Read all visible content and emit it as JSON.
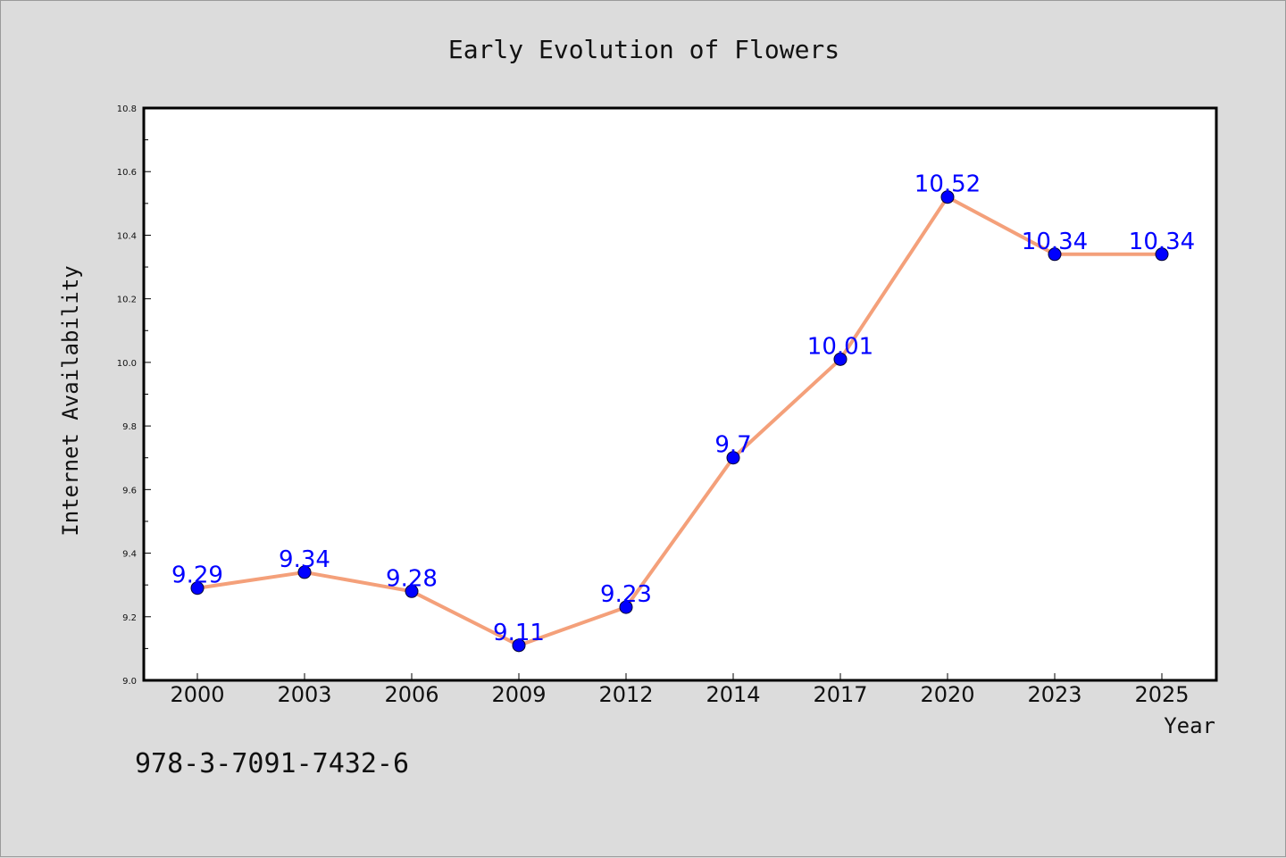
{
  "chart_data": {
    "type": "line",
    "title": "Early Evolution of Flowers",
    "xlabel": "Year",
    "ylabel": "Internet Availability",
    "categories": [
      "2000",
      "2003",
      "2006",
      "2009",
      "2012",
      "2014",
      "2017",
      "2020",
      "2023",
      "2025"
    ],
    "series": [
      {
        "values": [
          9.29,
          9.34,
          9.28,
          9.11,
          9.23,
          9.7,
          10.01,
          10.52,
          10.34,
          10.34
        ],
        "data_labels": [
          "9.29",
          "9.34",
          "9.28",
          "9.11",
          "9.23",
          "9.7",
          "10.01",
          "10.52",
          "10.34",
          "10.34"
        ],
        "line_color": "#f4a07a",
        "marker_color": "#0000ff"
      }
    ],
    "ylim": [
      9.0,
      10.8
    ],
    "yticks": [
      "9.0",
      "9.2",
      "9.4",
      "9.6",
      "9.8",
      "10.0",
      "10.2",
      "10.4",
      "10.6",
      "10.8"
    ],
    "grid": false,
    "legend": "none"
  },
  "annotation": {
    "isbn": "978-3-7091-7432-6"
  },
  "colors": {
    "background": "#dcdcdc",
    "plot_background": "#ffffff",
    "line": "#f4a07a",
    "marker": "#0000ff",
    "data_label": "#0000ff"
  }
}
